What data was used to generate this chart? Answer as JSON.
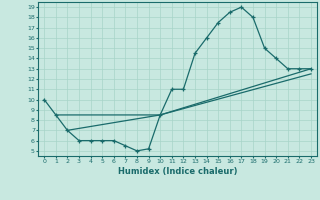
{
  "line1_x": [
    0,
    1,
    2,
    3,
    4,
    5,
    6,
    7,
    8,
    9,
    10,
    11,
    12,
    13,
    14,
    15,
    16,
    17,
    18,
    19,
    20,
    21,
    22,
    23
  ],
  "line1_y": [
    10,
    8.5,
    7,
    6,
    6,
    6,
    6,
    5.5,
    5,
    5.2,
    8.5,
    11,
    11,
    14.5,
    16,
    17.5,
    18.5,
    19,
    18,
    15,
    14,
    13,
    13,
    13
  ],
  "line2_x": [
    1,
    10,
    23
  ],
  "line2_y": [
    8.5,
    8.5,
    13.0
  ],
  "line3_x": [
    2,
    10,
    23
  ],
  "line3_y": [
    7.0,
    8.5,
    12.5
  ],
  "xlabel": "Humidex (Indice chaleur)",
  "xlim": [
    -0.5,
    23.5
  ],
  "ylim": [
    4.5,
    19.5
  ],
  "yticks": [
    5,
    6,
    7,
    8,
    9,
    10,
    11,
    12,
    13,
    14,
    15,
    16,
    17,
    18,
    19
  ],
  "xticks": [
    0,
    1,
    2,
    3,
    4,
    5,
    6,
    7,
    8,
    9,
    10,
    11,
    12,
    13,
    14,
    15,
    16,
    17,
    18,
    19,
    20,
    21,
    22,
    23
  ],
  "line_color": "#1a6b6b",
  "bg_color": "#c8e8e0",
  "grid_color": "#a8d4c8"
}
